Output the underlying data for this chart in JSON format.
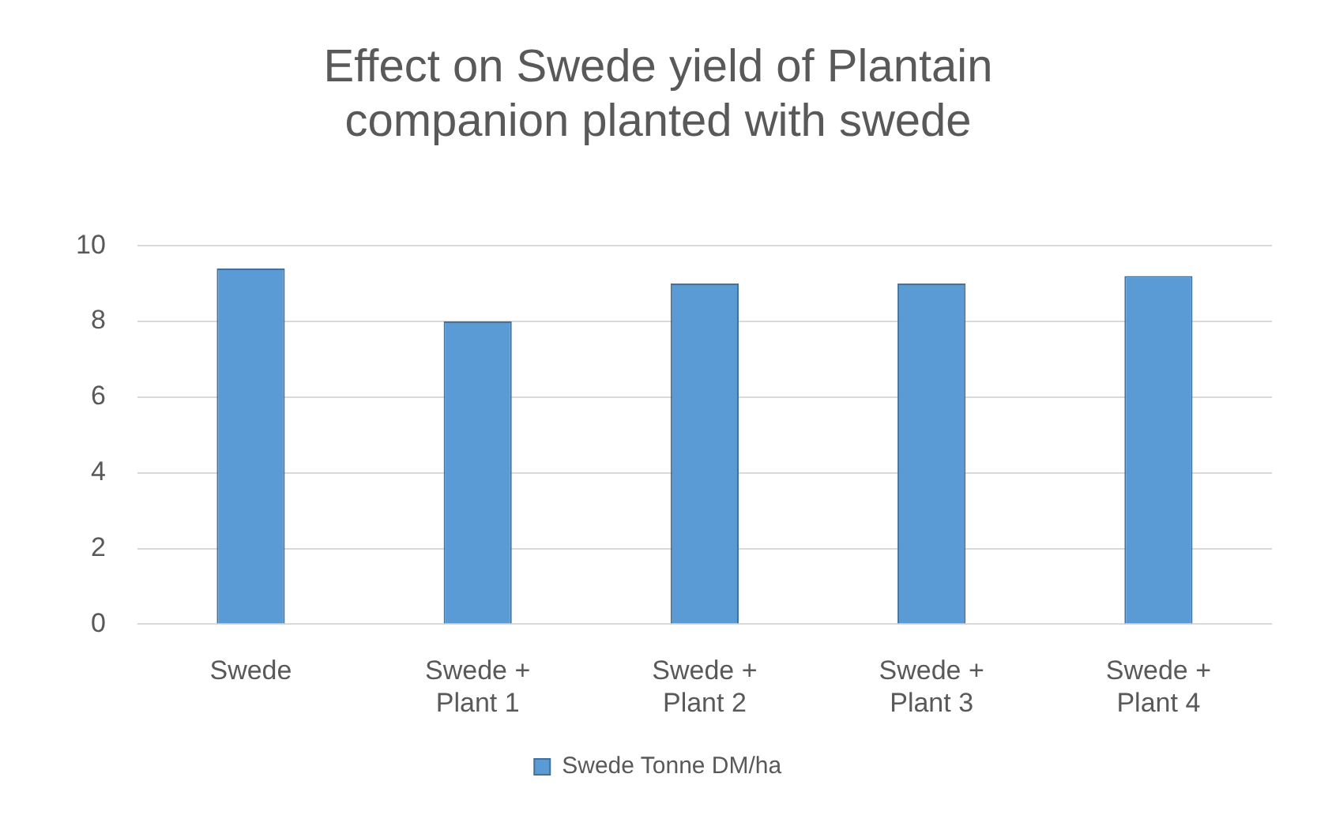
{
  "chart_data": {
    "type": "bar",
    "title": [
      "Effect on Swede yield of Plantain",
      "companion planted with swede"
    ],
    "categories": [
      [
        "Swede"
      ],
      [
        "Swede +",
        "Plant 1"
      ],
      [
        "Swede +",
        "Plant 2"
      ],
      [
        "Swede +",
        "Plant 3"
      ],
      [
        "Swede +",
        "Plant 4"
      ]
    ],
    "series": [
      {
        "name": "Swede Tonne DM/ha",
        "color": "#5b9bd5",
        "values": [
          9.4,
          8.0,
          9.0,
          9.0,
          9.2
        ]
      }
    ],
    "ylim": [
      0,
      10
    ],
    "yticks": [
      0,
      2,
      4,
      6,
      8,
      10
    ],
    "grid": "y",
    "legend": "bottom"
  }
}
